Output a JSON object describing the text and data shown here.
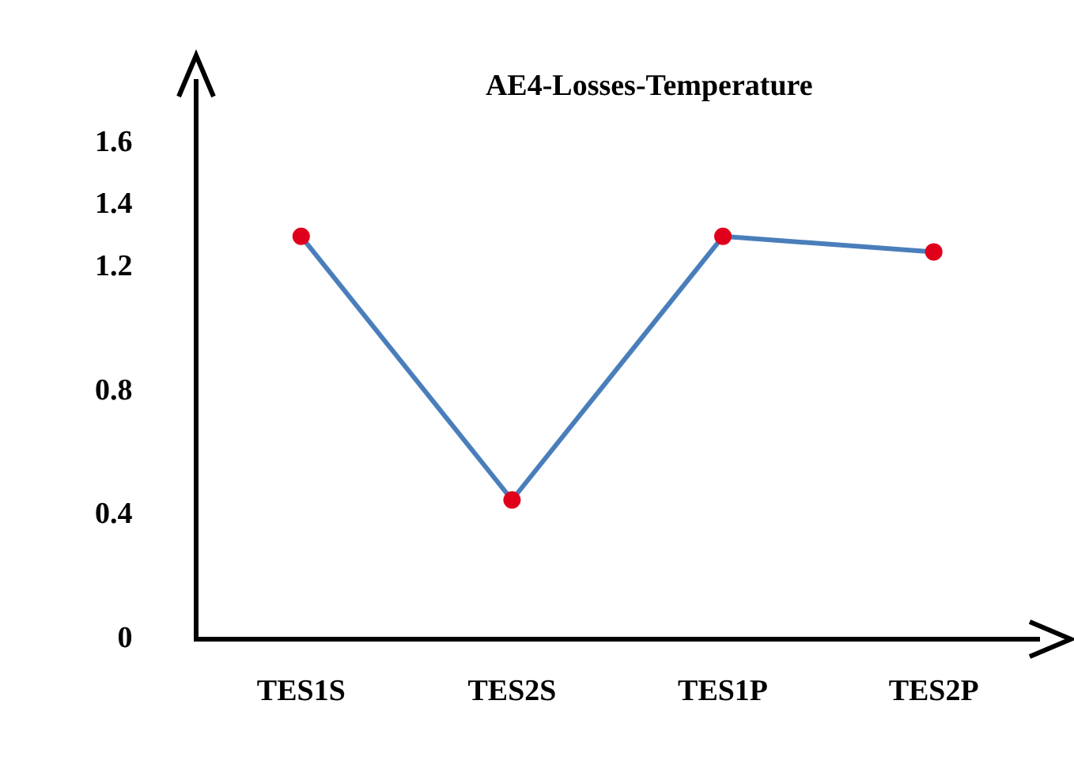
{
  "chart_data": {
    "type": "line",
    "title": "AE4-Losses-Temperature",
    "categories": [
      "TES1S",
      "TES2S",
      "TES1P",
      "TES2P"
    ],
    "series": [
      {
        "color": "#4a7ebb",
        "values": [
          1.3,
          0.45,
          1.3,
          1.25
        ]
      }
    ],
    "ylim": [
      0,
      1.8
    ],
    "yticks": [
      0,
      0.4,
      0.8,
      1.2,
      1.4,
      1.6
    ],
    "grid": false,
    "legend": false,
    "marker": "circle",
    "line_style": "solid"
  }
}
